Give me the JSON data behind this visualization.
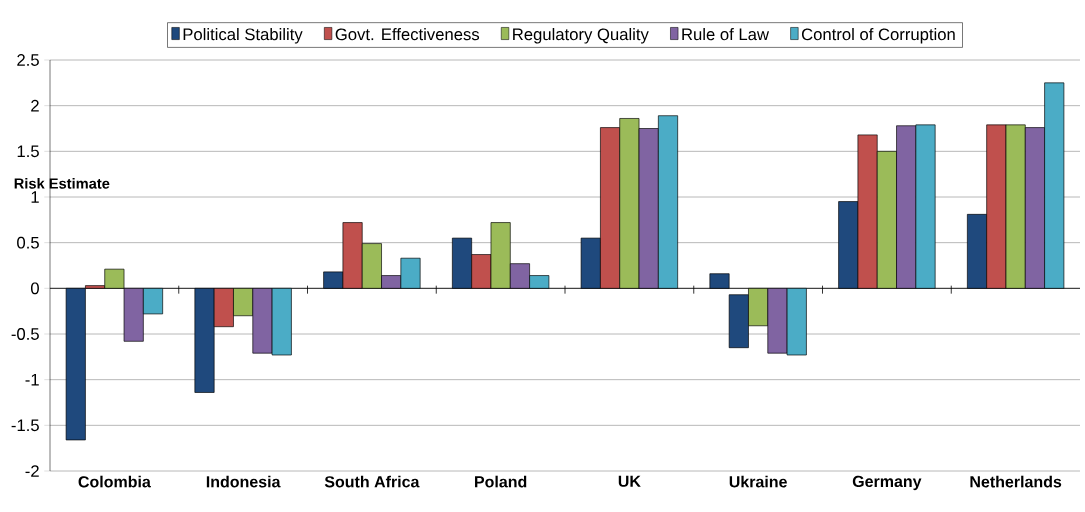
{
  "chart_data": {
    "type": "bar",
    "ylabel": "Risk Estimate",
    "categories": [
      "Colombia",
      "Indonesia",
      "South Africa",
      "Poland",
      "UK",
      "Ukraine",
      "Germany",
      "Netherlands"
    ],
    "series": [
      {
        "name": "Political Stability",
        "color": "#1f497d",
        "values": [
          -1.66,
          -1.14,
          0.18,
          0.55,
          0.55,
          0.16,
          0.95,
          0.81
        ]
      },
      {
        "name": "Govt. Effectiveness",
        "color": "#c0504d",
        "values": [
          0.03,
          -0.42,
          0.72,
          0.37,
          1.76,
          -0.58,
          1.68,
          1.79
        ],
        "base": [
          null,
          null,
          null,
          null,
          null,
          -0.07,
          null,
          null
        ],
        "colors": [
          "#c0504d",
          "#c0504d",
          "#c0504d",
          "#c0504d",
          "#c0504d",
          "#1f497d",
          "#c0504d",
          "#c0504d"
        ]
      },
      {
        "name": "Regulatory Quality",
        "color": "#9bbb59",
        "values": [
          0.21,
          -0.3,
          0.49,
          0.72,
          1.86,
          -0.41,
          1.5,
          1.79
        ]
      },
      {
        "name": "Rule of Law",
        "color": "#8064a2",
        "values": [
          -0.58,
          -0.71,
          0.14,
          0.27,
          1.75,
          -0.71,
          1.78,
          1.76
        ]
      },
      {
        "name": "Control of Corruption",
        "color": "#4bacc6",
        "values": [
          -0.28,
          -0.73,
          0.33,
          0.14,
          1.89,
          -0.73,
          1.79,
          2.25
        ]
      }
    ],
    "ylim": [
      -2,
      2.5
    ],
    "yticks": [
      2.5,
      2,
      1.5,
      1,
      0.5,
      0,
      -0.5,
      -1,
      -1.5,
      -2
    ],
    "grid": "y",
    "legend": "top"
  }
}
